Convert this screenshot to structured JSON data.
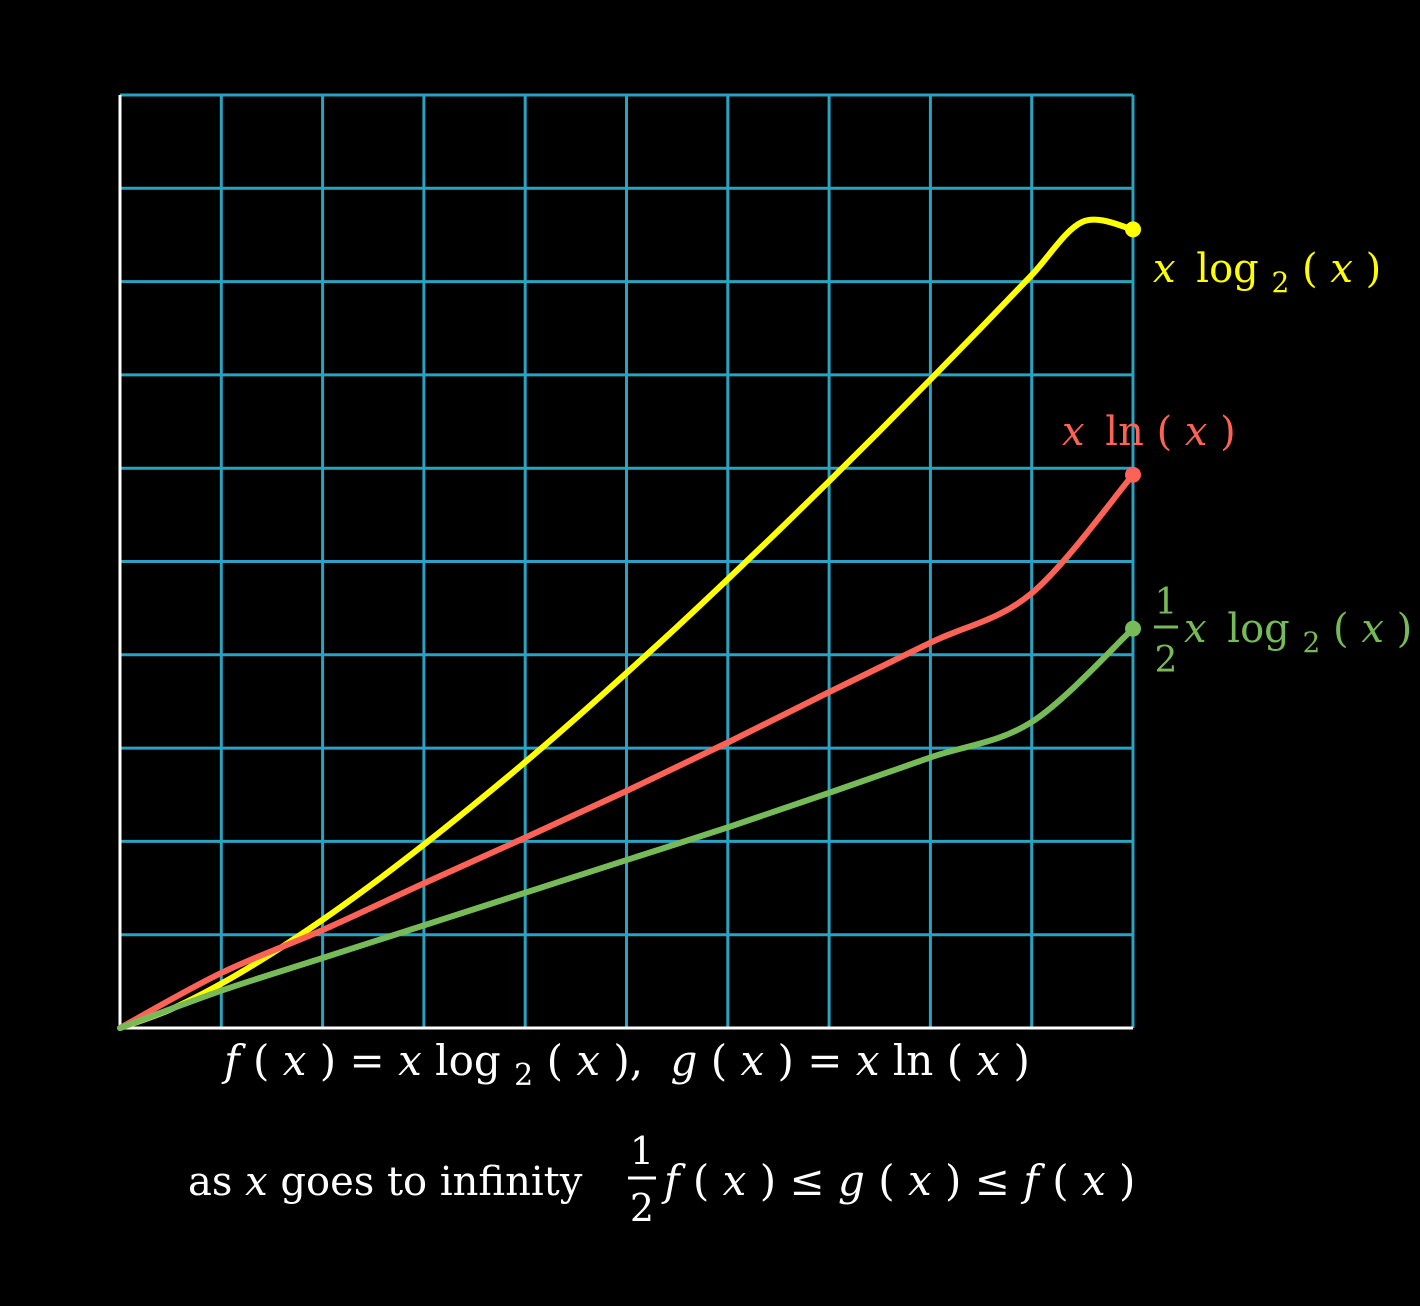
{
  "chart_data": {
    "type": "line",
    "xlim": [
      1,
      21
    ],
    "ylim": [
      0,
      100
    ],
    "grid": true,
    "grid_color": "#29a3c2",
    "axis_color": "#ffffff",
    "x_gridlines": 10,
    "y_gridlines": 10,
    "series": [
      {
        "name": "x log₂(x)",
        "color": "#ffff00",
        "x": [
          1,
          2,
          3,
          4,
          5,
          6,
          7,
          8,
          9,
          10,
          11,
          12,
          13,
          14,
          15,
          16,
          17,
          18,
          19,
          20,
          21
        ],
        "y": [
          0,
          2,
          4.75,
          8,
          11.6,
          15.5,
          19.65,
          24,
          28.5,
          33.2,
          38.05,
          43.0,
          48.1,
          53.3,
          58.6,
          64,
          69.5,
          75.05,
          80.7,
          86.4,
          85.6
        ]
      },
      {
        "name": "x ln(x)",
        "color": "#fc6255",
        "x": [
          1,
          3,
          5,
          7,
          9,
          11,
          13,
          15,
          17,
          19,
          21
        ],
        "y": [
          0,
          5.9,
          10.5,
          15.5,
          20.4,
          25.4,
          30.6,
          36.0,
          41.3,
          46.6,
          59.3
        ]
      },
      {
        "name": "½ x log₂(x)",
        "color": "#77bb59",
        "x": [
          1,
          3,
          5,
          7,
          9,
          11,
          13,
          15,
          17,
          19,
          21
        ],
        "y": [
          0,
          4.0,
          7.5,
          11.0,
          14.5,
          18.0,
          21.5,
          25.2,
          29.0,
          32.8,
          42.8
        ]
      }
    ]
  },
  "labels": {
    "yellow": {
      "a": "x",
      "b": "log",
      "sub": "2",
      "c": "(",
      "d": "x",
      "e": ")"
    },
    "red": {
      "a": "x",
      "b": "ln",
      "c": "(",
      "d": "x",
      "e": ")"
    },
    "green": {
      "num": "1",
      "den": "2",
      "a": "x",
      "b": "log",
      "sub": "2",
      "c": "(",
      "d": "x",
      "e": ")"
    }
  },
  "caption": {
    "line1": {
      "f": "f",
      "p1": "(",
      "x1": "x",
      "p2": ")",
      "eq1": " = ",
      "x2": "x",
      "log": " log",
      "sub": "2",
      "p3": "(",
      "x3": "x",
      "p4": "),",
      "g": "g",
      "p5": "(",
      "x4": "x",
      "p6": ")",
      "eq2": " = ",
      "x5": "x",
      "ln": " ln",
      "p7": "(",
      "x6": "x",
      "p8": ")"
    },
    "line2": {
      "t1": "as ",
      "x": "x",
      "t2": " goes to infinity",
      "num": "1",
      "den": "2",
      "f1": "f",
      "a1": "(",
      "x1": "x",
      "a2": ")",
      "le1": " ≤ ",
      "g": "g",
      "a3": "(",
      "x2": "x",
      "a4": ")",
      "le2": " ≤ ",
      "f2": "f",
      "a5": "(",
      "x3": "x",
      "a6": ")"
    }
  }
}
